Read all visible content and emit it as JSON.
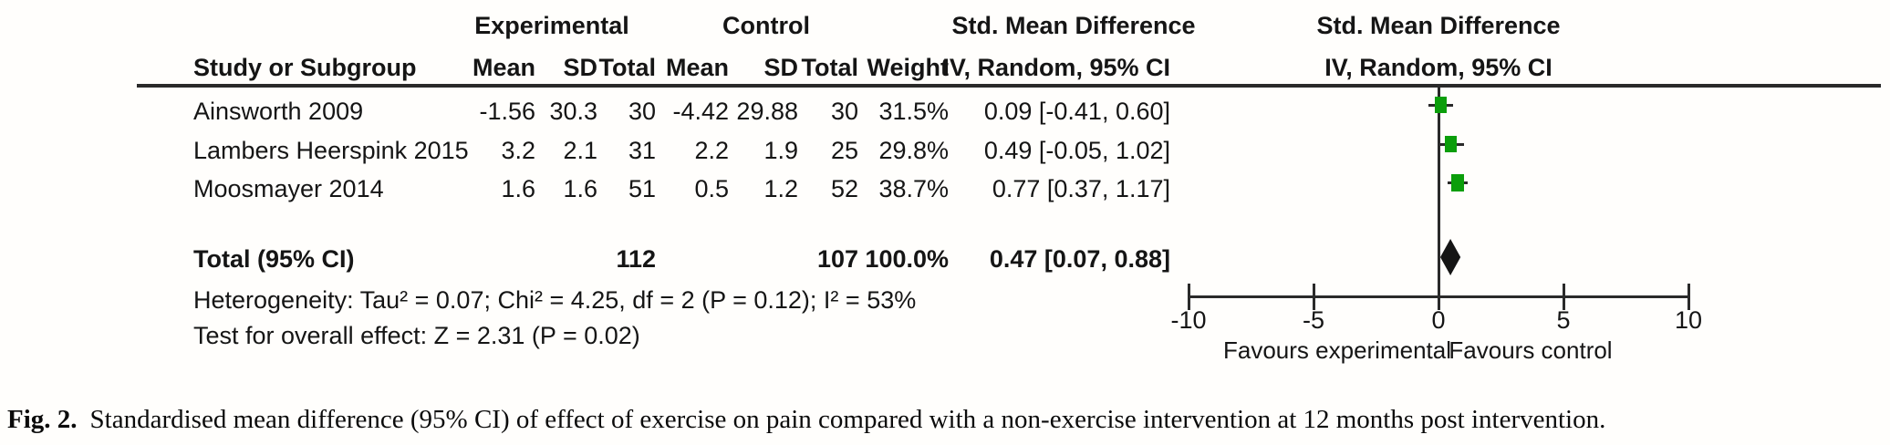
{
  "figure": {
    "headers": {
      "experimental": "Experimental",
      "control": "Control",
      "smd": "Std. Mean Difference",
      "study": "Study or Subgroup",
      "mean": "Mean",
      "sd": "SD",
      "total": "Total",
      "weight": "Weight",
      "iv": "IV, Random, 95% CI"
    },
    "studies": [
      {
        "name": "Ainsworth 2009",
        "mean_e": "-1.56",
        "sd_e": "30.3",
        "total_e": "30",
        "mean_c": "-4.42",
        "sd_c": "29.88",
        "total_c": "30",
        "weight": "31.5%",
        "ci_text": "0.09 [-0.41, 0.60]",
        "est": 0.09,
        "ci_low": -0.41,
        "ci_high": 0.6,
        "weight_pct": 31.5
      },
      {
        "name": "Lambers Heerspink 2015",
        "mean_e": "3.2",
        "sd_e": "2.1",
        "total_e": "31",
        "mean_c": "2.2",
        "sd_c": "1.9",
        "total_c": "25",
        "weight": "29.8%",
        "ci_text": "0.49 [-0.05, 1.02]",
        "est": 0.49,
        "ci_low": -0.05,
        "ci_high": 1.02,
        "weight_pct": 29.8
      },
      {
        "name": "Moosmayer 2014",
        "mean_e": "1.6",
        "sd_e": "1.6",
        "total_e": "51",
        "mean_c": "0.5",
        "sd_c": "1.2",
        "total_c": "52",
        "weight": "38.7%",
        "ci_text": "0.77 [0.37, 1.17]",
        "est": 0.77,
        "ci_low": 0.37,
        "ci_high": 1.17,
        "weight_pct": 38.7
      }
    ],
    "total": {
      "label": "Total (95% CI)",
      "total_e": "112",
      "total_c": "107",
      "weight": "100.0%",
      "ci_text": "0.47 [0.07, 0.88]",
      "est": 0.47,
      "ci_low": 0.07,
      "ci_high": 0.88
    },
    "heterogeneity": "Heterogeneity: Tau² = 0.07; Chi² = 4.25, df = 2 (P = 0.12); I² = 53%",
    "overall_effect": "Test for overall effect: Z = 2.31 (P = 0.02)",
    "axis": {
      "ticks": [
        -10,
        -5,
        0,
        5,
        10
      ],
      "min": -10,
      "max": 10
    },
    "favours_left": "Favours experimental",
    "favours_right": "Favours control",
    "marker_color": "#0b9e0b",
    "diamond_color": "#151515",
    "line_color": "#2a2a2a"
  },
  "caption": {
    "label": "Fig. 2.",
    "text": "Standardised mean difference (95% CI) of effect of exercise on pain compared with a non-exercise intervention at 12 months post intervention."
  },
  "chart_data": {
    "type": "scatter",
    "subtype": "forest-plot-meta-analysis",
    "title": "Std. Mean Difference  IV, Random, 95% CI",
    "xlabel": "",
    "x_axis": {
      "range": [
        -10,
        10
      ],
      "ticks": [
        -10,
        -5,
        0,
        5,
        10
      ],
      "label_left_of_zero": "Favours experimental",
      "label_right_of_zero": "Favours control"
    },
    "points": [
      {
        "study": "Ainsworth 2009",
        "estimate": 0.09,
        "ci": [
          -0.41,
          0.6
        ],
        "weight_pct": 31.5
      },
      {
        "study": "Lambers Heerspink 2015",
        "estimate": 0.49,
        "ci": [
          -0.05,
          1.02
        ],
        "weight_pct": 29.8
      },
      {
        "study": "Moosmayer 2014",
        "estimate": 0.77,
        "ci": [
          0.37,
          1.17
        ],
        "weight_pct": 38.7
      }
    ],
    "overall": {
      "label": "Total (95% CI)",
      "estimate": 0.47,
      "ci": [
        0.07,
        0.88
      ],
      "weight_pct": 100.0,
      "n_experimental": 112,
      "n_control": 107
    },
    "stats": {
      "tau2": 0.07,
      "chi2": 4.25,
      "df": 2,
      "p_heterogeneity": 0.12,
      "i2_pct": 53,
      "z": 2.31,
      "p_overall": 0.02
    }
  }
}
